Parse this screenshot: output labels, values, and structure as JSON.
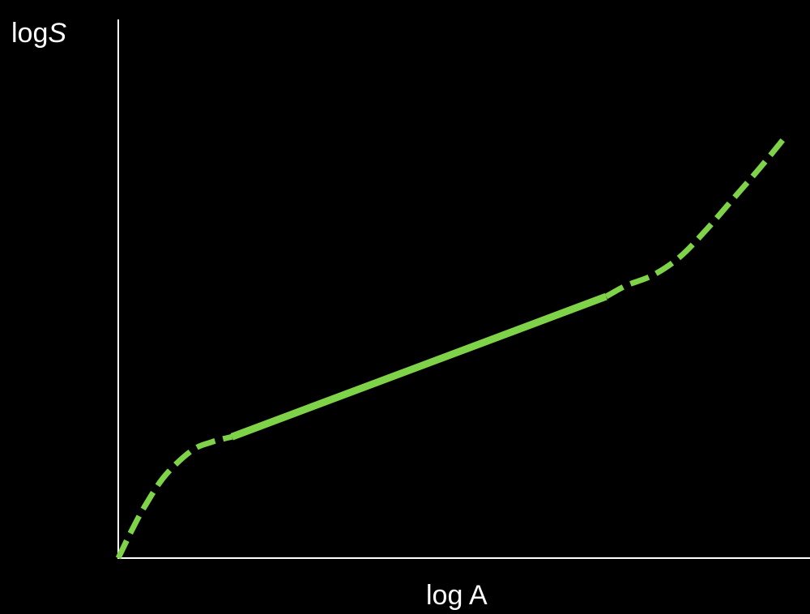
{
  "chart_data": {
    "type": "line",
    "title": "",
    "xlabel": "log A",
    "ylabel_prefix": "log",
    "ylabel_italic": "S",
    "show_ticks": false,
    "grid": false,
    "xlim": [
      0,
      100
    ],
    "ylim": [
      0,
      100
    ],
    "colors": {
      "background": "#000000",
      "axis": "#ffffff",
      "curve": "#7ed348"
    },
    "series": [
      {
        "style": "dashed",
        "points": [
          [
            0,
            0
          ],
          [
            2,
            5.8
          ],
          [
            4,
            11
          ],
          [
            7,
            17.4
          ],
          [
            11,
            22.7
          ],
          [
            14,
            24.5
          ],
          [
            17,
            25.6
          ]
        ]
      },
      {
        "style": "solid",
        "points": [
          [
            17,
            25.6
          ],
          [
            73,
            55.2
          ]
        ]
      },
      {
        "style": "dashed",
        "points": [
          [
            73,
            55.2
          ],
          [
            76,
            57.5
          ],
          [
            80,
            59.7
          ],
          [
            84,
            63.5
          ],
          [
            88,
            69.3
          ],
          [
            92,
            75.8
          ],
          [
            96,
            82.3
          ],
          [
            100,
            89.2
          ]
        ]
      }
    ]
  }
}
